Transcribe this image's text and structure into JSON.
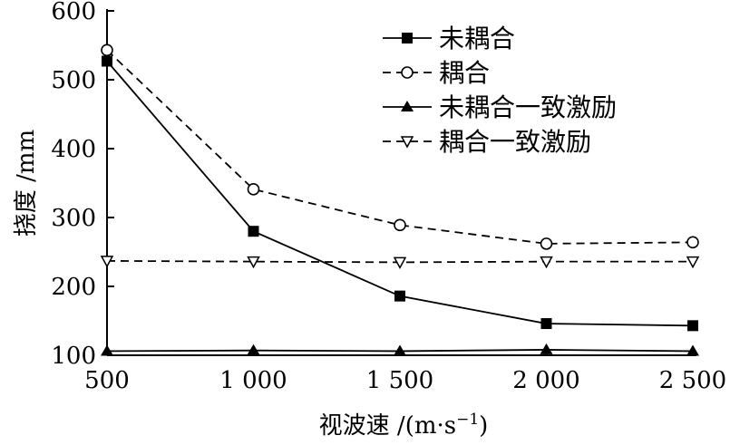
{
  "chart_data": {
    "type": "line",
    "x": [
      500,
      1000,
      1500,
      2000,
      2500
    ],
    "x_tick_labels": [
      "500",
      "1 000",
      "1 500",
      "2 000",
      "2 500"
    ],
    "y_ticks": [
      100,
      200,
      300,
      400,
      500,
      600
    ],
    "y_tick_labels": [
      "100",
      "200",
      "300",
      "400",
      "500",
      "600"
    ],
    "xlim": [
      500,
      2500
    ],
    "ylim": [
      100,
      600
    ],
    "xlabel": "视波速 /(m·s",
    "xlabel_sup": "−1",
    "xlabel_end": ")",
    "ylabel": "挠度 /mm",
    "grid": false,
    "legend_position": "top-right",
    "series": [
      {
        "name": "未耦合",
        "values": [
          527,
          280,
          186,
          146,
          143
        ],
        "color": "#000000",
        "line_style": "solid",
        "marker": "square-filled"
      },
      {
        "name": "耦合",
        "values": [
          543,
          341,
          289,
          262,
          264
        ],
        "color": "#000000",
        "line_style": "dashed",
        "marker": "circle-open"
      },
      {
        "name": "未耦合一致激励",
        "values": [
          106,
          107,
          106,
          108,
          106
        ],
        "color": "#000000",
        "line_style": "solid",
        "marker": "triangle-up-filled"
      },
      {
        "name": "耦合一致激励",
        "values": [
          237,
          236,
          235,
          236,
          236
        ],
        "color": "#000000",
        "line_style": "dashed",
        "marker": "triangle-down-open"
      }
    ]
  }
}
